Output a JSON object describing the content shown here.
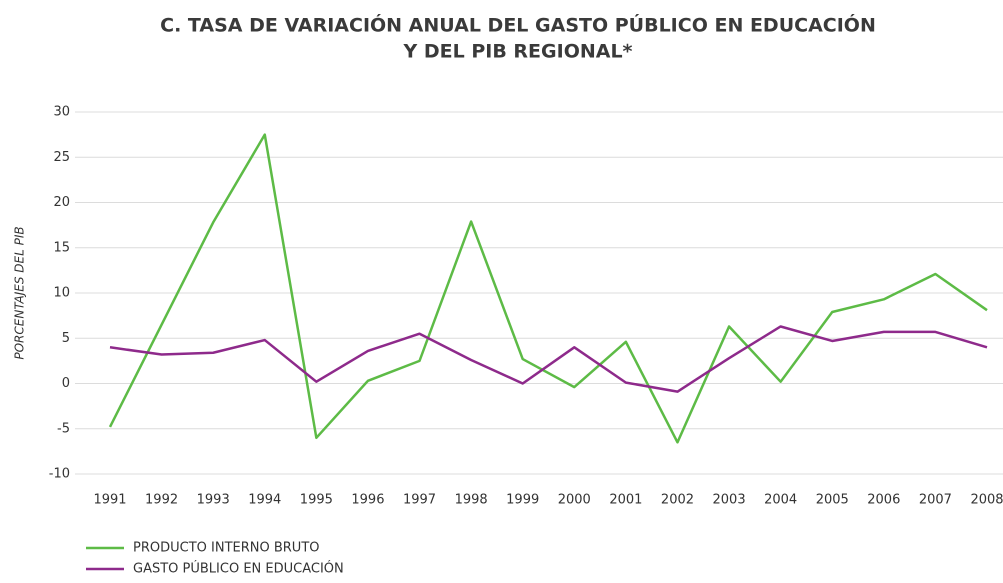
{
  "chart_data": {
    "type": "line",
    "title": [
      "C. TASA DE VARIACIÓN ANUAL DEL GASTO PÚBLICO EN EDUCACIÓN",
      "Y DEL PIB REGIONAL*"
    ],
    "y_label": "PORCENTAJES DEL PIB",
    "categories": [
      "1991",
      "1992",
      "1993",
      "1994",
      "1995",
      "1996",
      "1997",
      "1998",
      "1999",
      "2000",
      "2001",
      "2002",
      "2003",
      "2004",
      "2005",
      "2006",
      "2007",
      "2008"
    ],
    "series": [
      {
        "name": "PRODUCTO INTERNO BRUTO",
        "color": "#5dbb46",
        "values": [
          -4.8,
          6.5,
          17.8,
          27.5,
          -6,
          0.3,
          2.5,
          17.9,
          2.7,
          -0.4,
          4.6,
          -6.5,
          6.3,
          0.2,
          7.9,
          9.3,
          12.1,
          8.1
        ]
      },
      {
        "name": "GASTO PÚBLICO EN EDUCACIÓN",
        "color": "#8e2a8b",
        "values": [
          4.0,
          3.2,
          3.4,
          4.8,
          0.2,
          3.6,
          5.5,
          2.6,
          0,
          4.0,
          0.1,
          -0.9,
          2.8,
          6.3,
          4.7,
          5.7,
          5.7,
          4.0
        ]
      }
    ],
    "ylim": [
      -10,
      30
    ],
    "yticks": [
      -10,
      -5,
      0,
      5,
      10,
      15,
      20,
      25,
      30
    ],
    "grid": true,
    "legend": "bottom-left"
  }
}
